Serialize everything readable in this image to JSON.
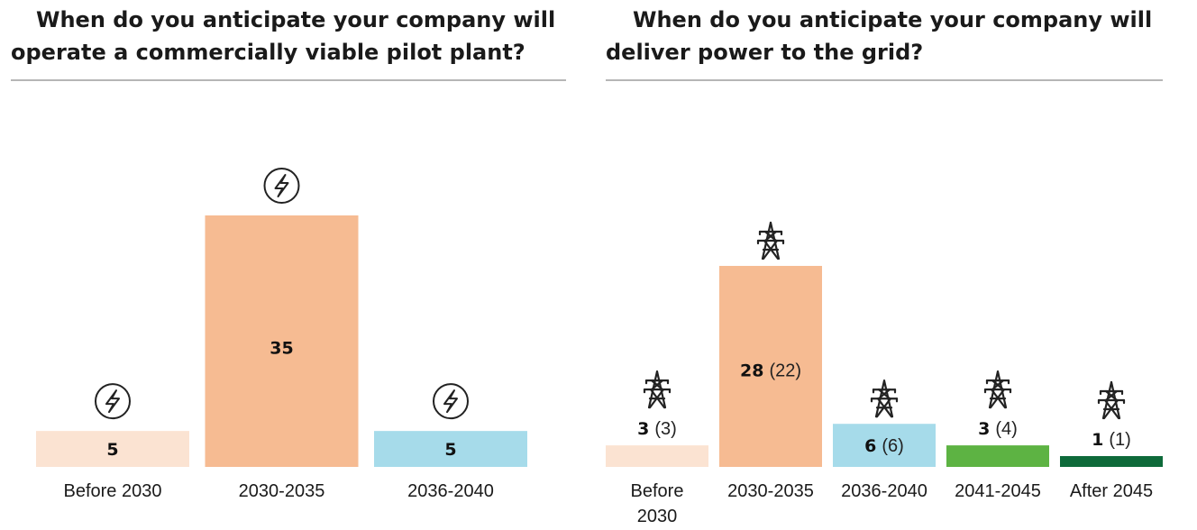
{
  "colors": {
    "light_peach": "#fbe3d2",
    "peach": "#f6bb92",
    "light_blue": "#a6dbea",
    "green": "#5db343",
    "dark_green": "#0e6a3a"
  },
  "chart_data": [
    {
      "type": "bar",
      "title_lines": [
        "When do you anticipate your company will",
        "operate a commercially viable pilot plant?"
      ],
      "categories": [
        "Before 2030",
        "2030-2035",
        "2036-2040"
      ],
      "values": [
        5,
        35,
        5
      ],
      "value_labels": [
        "5",
        "35",
        "5"
      ],
      "bar_colors": [
        "#fbe3d2",
        "#f6bb92",
        "#a6dbea"
      ],
      "icon": "lightning-bolt-icon",
      "xlabel": "",
      "ylabel": "",
      "ylim": [
        0,
        35
      ]
    },
    {
      "type": "bar",
      "title_lines": [
        "When do you anticipate your company will",
        "deliver power to the grid?"
      ],
      "categories": [
        "Before 2030",
        "2030-2035",
        "2036-2040",
        "2041-2045",
        "After 2045"
      ],
      "category_lines": [
        [
          "Before",
          "2030"
        ],
        [
          "2030-2035"
        ],
        [
          "2036-2040"
        ],
        [
          "2041-2045"
        ],
        [
          "After 2045"
        ]
      ],
      "values": [
        3,
        28,
        6,
        3,
        1
      ],
      "previous_values": [
        3,
        22,
        6,
        4,
        1
      ],
      "value_labels": [
        "3",
        "28",
        "6",
        "3",
        "1"
      ],
      "previous_labels": [
        "(3)",
        "(22)",
        "(6)",
        "(4)",
        "(1)"
      ],
      "bar_colors": [
        "#fbe3d2",
        "#f6bb92",
        "#a6dbea",
        "#5db343",
        "#0e6a3a"
      ],
      "icon": "transmission-tower-icon",
      "xlabel": "",
      "ylabel": "",
      "ylim": [
        0,
        28
      ]
    }
  ]
}
